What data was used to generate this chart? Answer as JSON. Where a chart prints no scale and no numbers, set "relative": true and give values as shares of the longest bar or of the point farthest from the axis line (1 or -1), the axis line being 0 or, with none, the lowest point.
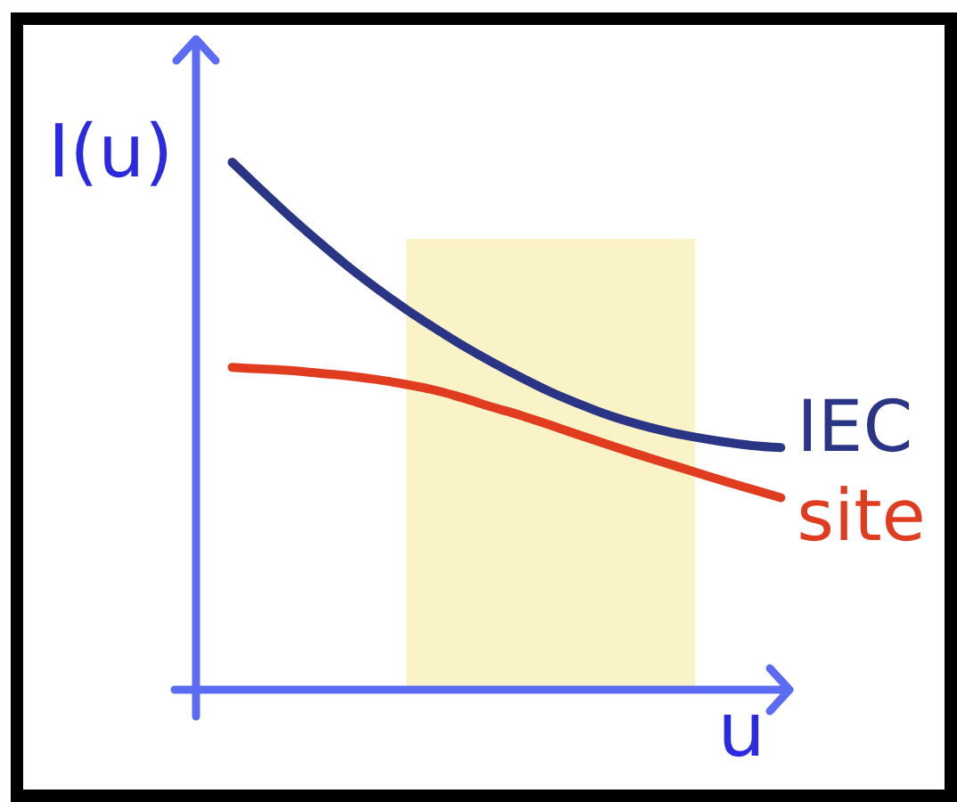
{
  "chart_data": {
    "type": "line",
    "relative": true,
    "xlabel": "u",
    "ylabel": "I(u)",
    "categories": [
      null,
      null,
      null,
      null,
      null,
      null,
      null,
      null,
      null,
      null,
      null,
      null,
      null,
      null,
      null,
      null,
      null,
      null,
      null,
      null
    ],
    "series": [
      {
        "name": "IEC",
        "color": "#2b3585",
        "values": [
          1.0,
          0.948,
          0.897,
          0.849,
          0.803,
          0.761,
          0.722,
          0.686,
          0.652,
          0.621,
          0.592,
          0.565,
          0.542,
          0.521,
          0.504,
          0.49,
          0.479,
          0.47,
          0.463,
          0.459
        ]
      },
      {
        "name": "site",
        "color": "#e03c1f",
        "values": [
          0.611,
          0.608,
          0.605,
          0.6,
          0.595,
          0.588,
          0.579,
          0.568,
          0.553,
          0.536,
          0.52,
          0.502,
          0.483,
          0.465,
          0.447,
          0.43,
          0.413,
          0.396,
          0.38,
          0.364
        ]
      }
    ]
  }
}
